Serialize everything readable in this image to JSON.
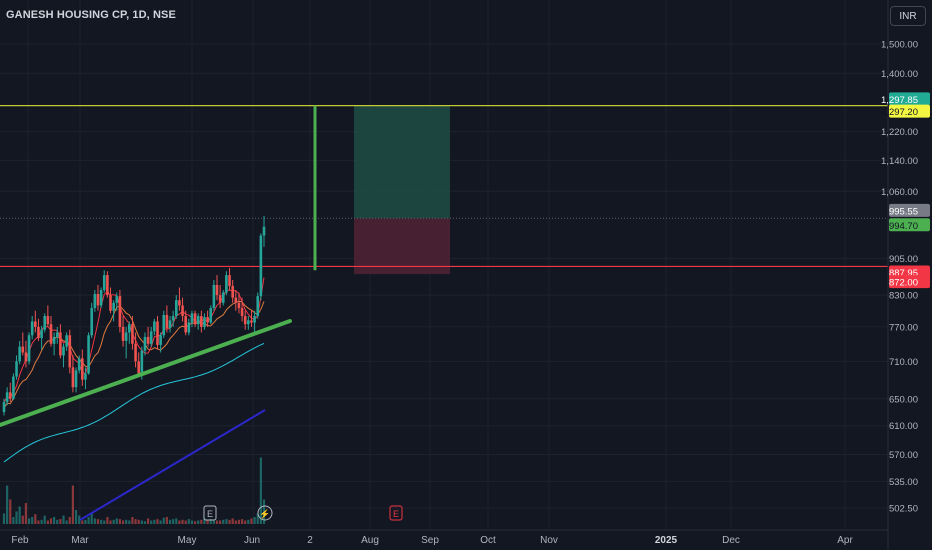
{
  "header": {
    "symbol_title": "GANESH HOUSING CP, 1D, NSE",
    "currency_button": "INR"
  },
  "colors": {
    "background": "#131722",
    "grid": "#1e222d",
    "text": "#b2b5be",
    "up_candle": "#26a69a",
    "down_candle": "#ef5350",
    "resistance_line": "#c4c832",
    "support_line": "#f23645",
    "trendline": "#4caf50",
    "ma_short": "#f23645",
    "ma_mid": "#e07a3f",
    "ma_long": "#26c6da",
    "ma_very_long": "#2b27c9",
    "profit_zone": "#1f4a44",
    "loss_zone": "#4a2233"
  },
  "chart_data": {
    "type": "candlestick",
    "title": "GANESH HOUSING CP, 1D, NSE",
    "y_axis": {
      "scale": "log",
      "ticks": [
        "1,500.00",
        "1,400.00",
        "1,297.85",
        "1,297.20",
        "1,220.00",
        "1,140.00",
        "1,060.00",
        "995.55",
        "994.70",
        "905.00",
        "887.95",
        "872.00",
        "830.00",
        "770.00",
        "710.00",
        "650.00",
        "610.00",
        "570.00",
        "535.00",
        "502.50"
      ],
      "plain_ticks": [
        1500,
        1400,
        1220,
        1140,
        1060,
        905,
        830,
        770,
        710,
        650,
        610,
        570,
        535,
        502.5
      ]
    },
    "x_axis": {
      "tick_labels": [
        "Feb",
        "Mar",
        "May",
        "Jun",
        "2",
        "Aug",
        "Sep",
        "Oct",
        "Nov",
        "2025",
        "Dec",
        "Apr"
      ]
    },
    "price_labels": [
      {
        "text": "1,297.85",
        "value": 1297.85,
        "color": "#22ab94",
        "text_color": "#ffffff"
      },
      {
        "text": "1,297.20",
        "value": 1297.2,
        "color": "#f4f741",
        "text_color": "#131722"
      },
      {
        "text": "995.55",
        "value": 995.55,
        "color": "#787b86",
        "text_color": "#ffffff"
      },
      {
        "text": "994.70",
        "value": 994.7,
        "color": "#4caf50",
        "text_color": "#131722"
      },
      {
        "text": "887.95",
        "value": 887.95,
        "color": "#f23645",
        "text_color": "#ffffff"
      },
      {
        "text": "872.00",
        "value": 872,
        "color": "#f23645",
        "text_color": "#ffffff"
      }
    ],
    "horizontal_lines": [
      {
        "name": "target",
        "value": 1297.2
      },
      {
        "name": "entry-support",
        "value": 887.95
      }
    ],
    "position_tool": {
      "entry": 994.7,
      "target": 1297.2,
      "stop": 872
    },
    "ohlc": [
      [
        630,
        650,
        625,
        645
      ],
      [
        645,
        668,
        640,
        660
      ],
      [
        660,
        675,
        645,
        650
      ],
      [
        650,
        690,
        648,
        685
      ],
      [
        685,
        720,
        680,
        710
      ],
      [
        710,
        745,
        705,
        735
      ],
      [
        735,
        760,
        720,
        725
      ],
      [
        725,
        745,
        700,
        710
      ],
      [
        710,
        760,
        705,
        755
      ],
      [
        755,
        790,
        748,
        780
      ],
      [
        780,
        800,
        760,
        770
      ],
      [
        770,
        785,
        745,
        750
      ],
      [
        750,
        772,
        730,
        765
      ],
      [
        765,
        795,
        760,
        790
      ],
      [
        790,
        810,
        770,
        775
      ],
      [
        775,
        790,
        735,
        740
      ],
      [
        740,
        760,
        720,
        752
      ],
      [
        752,
        770,
        740,
        760
      ],
      [
        760,
        775,
        715,
        720
      ],
      [
        720,
        740,
        700,
        735
      ],
      [
        735,
        760,
        728,
        755
      ],
      [
        755,
        765,
        690,
        700
      ],
      [
        700,
        720,
        660,
        668
      ],
      [
        668,
        700,
        660,
        695
      ],
      [
        695,
        720,
        690,
        715
      ],
      [
        715,
        730,
        670,
        680
      ],
      [
        680,
        700,
        665,
        690
      ],
      [
        690,
        760,
        688,
        755
      ],
      [
        755,
        815,
        750,
        805
      ],
      [
        805,
        840,
        798,
        832
      ],
      [
        832,
        850,
        800,
        810
      ],
      [
        810,
        845,
        805,
        840
      ],
      [
        840,
        880,
        835,
        870
      ],
      [
        870,
        878,
        825,
        830
      ],
      [
        830,
        845,
        795,
        800
      ],
      [
        800,
        820,
        780,
        815
      ],
      [
        815,
        835,
        800,
        828
      ],
      [
        828,
        840,
        760,
        770
      ],
      [
        770,
        790,
        735,
        745
      ],
      [
        745,
        770,
        715,
        760
      ],
      [
        760,
        780,
        740,
        775
      ],
      [
        775,
        790,
        730,
        740
      ],
      [
        740,
        760,
        700,
        710
      ],
      [
        710,
        725,
        685,
        690
      ],
      [
        690,
        735,
        680,
        728
      ],
      [
        728,
        760,
        720,
        752
      ],
      [
        752,
        770,
        735,
        740
      ],
      [
        740,
        770,
        735,
        762
      ],
      [
        762,
        785,
        755,
        780
      ],
      [
        780,
        790,
        730,
        738
      ],
      [
        738,
        760,
        725,
        755
      ],
      [
        755,
        800,
        750,
        792
      ],
      [
        792,
        810,
        760,
        768
      ],
      [
        768,
        790,
        760,
        782
      ],
      [
        782,
        800,
        770,
        790
      ],
      [
        790,
        830,
        785,
        820
      ],
      [
        820,
        845,
        800,
        810
      ],
      [
        810,
        825,
        780,
        790
      ],
      [
        790,
        800,
        755,
        760
      ],
      [
        760,
        785,
        755,
        778
      ],
      [
        778,
        800,
        770,
        795
      ],
      [
        795,
        800,
        770,
        775
      ],
      [
        775,
        795,
        765,
        790
      ],
      [
        790,
        800,
        760,
        770
      ],
      [
        770,
        795,
        765,
        788
      ],
      [
        788,
        800,
        770,
        778
      ],
      [
        778,
        810,
        775,
        805
      ],
      [
        805,
        860,
        800,
        850
      ],
      [
        850,
        870,
        820,
        830
      ],
      [
        830,
        850,
        805,
        815
      ],
      [
        815,
        840,
        810,
        835
      ],
      [
        835,
        878,
        830,
        870
      ],
      [
        870,
        885,
        840,
        848
      ],
      [
        848,
        860,
        815,
        825
      ],
      [
        825,
        840,
        800,
        815
      ],
      [
        815,
        835,
        795,
        805
      ],
      [
        805,
        825,
        780,
        790
      ],
      [
        790,
        800,
        765,
        775
      ],
      [
        775,
        790,
        765,
        782
      ],
      [
        782,
        800,
        770,
        778
      ],
      [
        778,
        800,
        760,
        790
      ],
      [
        790,
        835,
        785,
        828
      ],
      [
        828,
        960,
        820,
        955
      ],
      [
        955,
        1000,
        930,
        975
      ]
    ],
    "volume": [
      0.15,
      0.55,
      0.35,
      0.1,
      0.18,
      0.25,
      0.12,
      0.3,
      0.08,
      0.1,
      0.14,
      0.05,
      0.06,
      0.12,
      0.05,
      0.08,
      0.1,
      0.06,
      0.07,
      0.12,
      0.05,
      0.1,
      0.55,
      0.2,
      0.12,
      0.05,
      0.06,
      0.1,
      0.15,
      0.08,
      0.07,
      0.06,
      0.05,
      0.1,
      0.05,
      0.06,
      0.08,
      0.07,
      0.05,
      0.06,
      0.05,
      0.1,
      0.07,
      0.06,
      0.05,
      0.04,
      0.08,
      0.05,
      0.06,
      0.07,
      0.05,
      0.09,
      0.1,
      0.06,
      0.07,
      0.08,
      0.05,
      0.06,
      0.05,
      0.07,
      0.05,
      0.04,
      0.05,
      0.06,
      0.08,
      0.05,
      0.07,
      0.06,
      0.05,
      0.05,
      0.06,
      0.07,
      0.06,
      0.08,
      0.05,
      0.06,
      0.07,
      0.05,
      0.06,
      0.08,
      0.1,
      0.15,
      0.95,
      0.35
    ]
  },
  "markers": [
    {
      "label": "E"
    },
    {
      "label": "⚡"
    },
    {
      "label": "E"
    }
  ]
}
